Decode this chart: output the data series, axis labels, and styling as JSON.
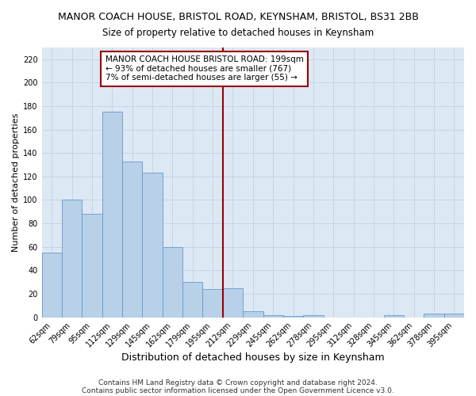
{
  "title": "MANOR COACH HOUSE, BRISTOL ROAD, KEYNSHAM, BRISTOL, BS31 2BB",
  "subtitle": "Size of property relative to detached houses in Keynsham",
  "xlabel": "Distribution of detached houses by size in Keynsham",
  "ylabel": "Number of detached properties",
  "bar_labels": [
    "62sqm",
    "79sqm",
    "95sqm",
    "112sqm",
    "129sqm",
    "145sqm",
    "162sqm",
    "179sqm",
    "195sqm",
    "212sqm",
    "229sqm",
    "245sqm",
    "262sqm",
    "278sqm",
    "295sqm",
    "312sqm",
    "328sqm",
    "345sqm",
    "362sqm",
    "378sqm",
    "395sqm"
  ],
  "bar_values": [
    55,
    100,
    88,
    175,
    133,
    123,
    60,
    30,
    24,
    25,
    5,
    2,
    1,
    2,
    0,
    0,
    0,
    2,
    0,
    3,
    3
  ],
  "bar_color": "#b8d0e8",
  "bar_edgecolor": "#6699cc",
  "vline_color": "#990000",
  "annotation_text": "MANOR COACH HOUSE BRISTOL ROAD: 199sqm\n← 93% of detached houses are smaller (767)\n7% of semi-detached houses are larger (55) →",
  "annotation_box_edgecolor": "#990000",
  "ylim": [
    0,
    230
  ],
  "yticks": [
    0,
    20,
    40,
    60,
    80,
    100,
    120,
    140,
    160,
    180,
    200,
    220
  ],
  "grid_color": "#c8d4e4",
  "plot_bg_color": "#dce8f4",
  "fig_bg_color": "#ffffff",
  "footer1": "Contains HM Land Registry data © Crown copyright and database right 2024.",
  "footer2": "Contains public sector information licensed under the Open Government Licence v3.0.",
  "title_fontsize": 9,
  "subtitle_fontsize": 8.5,
  "xlabel_fontsize": 9,
  "ylabel_fontsize": 8,
  "tick_fontsize": 7,
  "annotation_fontsize": 7.5,
  "footer_fontsize": 6.5
}
